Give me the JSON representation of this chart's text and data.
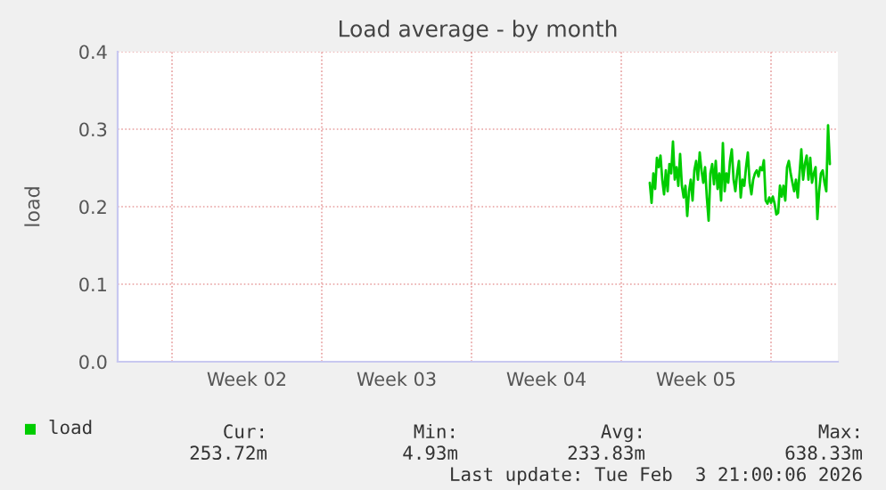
{
  "chart_data": {
    "type": "line",
    "title": "Load average - by month",
    "ylabel": "load",
    "categories": [
      null,
      null,
      null,
      null,
      null,
      null,
      null,
      null,
      null,
      null,
      null,
      null,
      null,
      null,
      null,
      null,
      null,
      null,
      null,
      null,
      null,
      null,
      null,
      null,
      null,
      null,
      null,
      null,
      null,
      null,
      null,
      null,
      null,
      null,
      null,
      null,
      null,
      null,
      null,
      null,
      null,
      null,
      null,
      null,
      null,
      null,
      null,
      null,
      null,
      null,
      null,
      null,
      null,
      null,
      null,
      null,
      null,
      null,
      null,
      null,
      null,
      null,
      null,
      null,
      null,
      null,
      null,
      null,
      null,
      null,
      null,
      null,
      "Week 02",
      null,
      null,
      null,
      null,
      null,
      null,
      null,
      null,
      null,
      null,
      null,
      null,
      null,
      null,
      null,
      null,
      null,
      null,
      null,
      null,
      null,
      null,
      null,
      null,
      null,
      null,
      null,
      null,
      null,
      null,
      null,
      null,
      null,
      null,
      null,
      null,
      null,
      null,
      null,
      null,
      null,
      null,
      null,
      null,
      null,
      null,
      null,
      null,
      null,
      null,
      null,
      null,
      null,
      null,
      null,
      null,
      null,
      null,
      null,
      null,
      null,
      null,
      null,
      null,
      null,
      null,
      null,
      null,
      null,
      null,
      null,
      null,
      null,
      null,
      null,
      null,
      null,
      null,
      null,
      null,
      null,
      null,
      null,
      "Week 03",
      null,
      null,
      null,
      null,
      null,
      null,
      null,
      null,
      null,
      null,
      null,
      null,
      null,
      null,
      null,
      null,
      null,
      null,
      null,
      null,
      null,
      null,
      null,
      null,
      null,
      null,
      null,
      null,
      null,
      null,
      null,
      null,
      null,
      null,
      null,
      null,
      null,
      null,
      null,
      null,
      null,
      null,
      null,
      null,
      null,
      null,
      null,
      null,
      null,
      null,
      null,
      null,
      null,
      null,
      null,
      null,
      null,
      null,
      null,
      null,
      null,
      null,
      null,
      null,
      null,
      null,
      null,
      null,
      null,
      null,
      null,
      null,
      null,
      null,
      null,
      null,
      null,
      null,
      null,
      null,
      null,
      null,
      null,
      "Week 04",
      null,
      null,
      null,
      null,
      null,
      null,
      null,
      null,
      null,
      null,
      null,
      null,
      null,
      null,
      null,
      null,
      null,
      null,
      null,
      null,
      null,
      null,
      null,
      null,
      null,
      null,
      null,
      null,
      null,
      null,
      null,
      null,
      null,
      null,
      null,
      null,
      null,
      null,
      null,
      null,
      null,
      null,
      null,
      null,
      null,
      null,
      null,
      null,
      null,
      null,
      null,
      null,
      null,
      null,
      null,
      null,
      null,
      null,
      null,
      null,
      null,
      null,
      null,
      null,
      null,
      null,
      null,
      null,
      null,
      null,
      null,
      null,
      null,
      null,
      null,
      null,
      null,
      null,
      null,
      null,
      null,
      null,
      null,
      "Week 05",
      null,
      null,
      null,
      null,
      null,
      null,
      null,
      null,
      null,
      null,
      null,
      null,
      null,
      null,
      null,
      null,
      null,
      null,
      null,
      null,
      null,
      null,
      null,
      null,
      null,
      null,
      null,
      null,
      null,
      null,
      null,
      null,
      null,
      null,
      null,
      null,
      null,
      null,
      null,
      null,
      null,
      null,
      null,
      null,
      null,
      null,
      null,
      null,
      null,
      null,
      null,
      null,
      null,
      null,
      null,
      null,
      null,
      null,
      null,
      null,
      null,
      null,
      null,
      null,
      null,
      null,
      null,
      null,
      null,
      null,
      null,
      null,
      null,
      null,
      null,
      null,
      null,
      null,
      null
    ],
    "series": [
      {
        "name": "load",
        "color": "#00cc00",
        "values": [
          null,
          null,
          null,
          null,
          null,
          null,
          null,
          null,
          null,
          null,
          null,
          null,
          null,
          null,
          null,
          null,
          null,
          null,
          null,
          null,
          null,
          null,
          null,
          null,
          null,
          null,
          null,
          null,
          null,
          null,
          null,
          null,
          null,
          null,
          null,
          null,
          null,
          null,
          null,
          null,
          null,
          null,
          null,
          null,
          null,
          null,
          null,
          null,
          null,
          null,
          null,
          null,
          null,
          null,
          null,
          null,
          null,
          null,
          null,
          null,
          null,
          null,
          null,
          null,
          null,
          null,
          null,
          null,
          null,
          null,
          null,
          null,
          null,
          null,
          null,
          null,
          null,
          null,
          null,
          null,
          null,
          null,
          null,
          null,
          null,
          null,
          null,
          null,
          null,
          null,
          null,
          null,
          null,
          null,
          null,
          null,
          null,
          null,
          null,
          null,
          null,
          null,
          null,
          null,
          null,
          null,
          null,
          null,
          null,
          null,
          null,
          null,
          null,
          null,
          null,
          null,
          null,
          null,
          null,
          null,
          null,
          null,
          null,
          null,
          null,
          null,
          null,
          null,
          null,
          null,
          null,
          null,
          null,
          null,
          null,
          null,
          null,
          null,
          null,
          null,
          null,
          null,
          null,
          null,
          null,
          null,
          null,
          null,
          null,
          null,
          null,
          null,
          null,
          null,
          null,
          null,
          null,
          null,
          null,
          null,
          null,
          null,
          null,
          null,
          null,
          null,
          null,
          null,
          null,
          null,
          null,
          null,
          null,
          null,
          null,
          null,
          null,
          null,
          null,
          null,
          null,
          null,
          null,
          null,
          null,
          null,
          null,
          null,
          null,
          null,
          null,
          null,
          null,
          null,
          null,
          null,
          null,
          null,
          null,
          null,
          null,
          null,
          null,
          null,
          null,
          null,
          null,
          null,
          null,
          null,
          null,
          null,
          null,
          null,
          null,
          null,
          null,
          null,
          null,
          null,
          null,
          null,
          null,
          null,
          null,
          null,
          null,
          null,
          null,
          null,
          null,
          null,
          null,
          null,
          null,
          null,
          null,
          null,
          null,
          null,
          null,
          null,
          null,
          null,
          null,
          null,
          null,
          null,
          null,
          null,
          null,
          null,
          null,
          null,
          null,
          null,
          null,
          null,
          null,
          null,
          null,
          null,
          null,
          null,
          null,
          null,
          null,
          null,
          null,
          null,
          null,
          null,
          null,
          null,
          null,
          null,
          null,
          null,
          null,
          null,
          null,
          null,
          null,
          null,
          null,
          null,
          null,
          null,
          null,
          null,
          null,
          null,
          null,
          null,
          null,
          null,
          null,
          null,
          0.231,
          0.205,
          0.243,
          0.223,
          0.263,
          0.251,
          0.266,
          0.235,
          0.216,
          0.247,
          0.22,
          0.255,
          0.243,
          0.284,
          0.235,
          0.251,
          0.227,
          0.268,
          0.227,
          0.212,
          0.227,
          0.188,
          0.22,
          0.235,
          0.208,
          0.247,
          0.259,
          0.235,
          0.27,
          0.247,
          0.231,
          0.251,
          0.212,
          0.182,
          0.243,
          0.255,
          0.229,
          0.259,
          0.223,
          0.243,
          0.208,
          0.282,
          0.22,
          0.243,
          0.231,
          0.259,
          0.274,
          0.235,
          0.22,
          0.243,
          0.259,
          0.212,
          0.235,
          0.227,
          0.251,
          0.27,
          0.231,
          0.216,
          0.235,
          0.243,
          0.247,
          0.239,
          0.251,
          0.247,
          0.26,
          0.208,
          0.204,
          0.212,
          0.205,
          0.213,
          0.204,
          0.19,
          0.192,
          0.227,
          0.213,
          0.227,
          0.208,
          0.251,
          0.259,
          0.243,
          0.231,
          0.22,
          0.235,
          0.212,
          0.243,
          0.274,
          0.235,
          0.255,
          0.266,
          0.235,
          0.263,
          0.231,
          0.243,
          0.251,
          0.184,
          0.22,
          0.243,
          0.247,
          0.231,
          0.22,
          0.305,
          0.255,
          null,
          null,
          null,
          null
        ]
      }
    ],
    "ylim": [
      0,
      0.4
    ],
    "yticks": [
      {
        "value": 0,
        "label": "0.0"
      },
      {
        "value": 0.1,
        "label": "0.1"
      },
      {
        "value": 0.2,
        "label": "0.2"
      },
      {
        "value": 0.3,
        "label": "0.3"
      },
      {
        "value": 0.4,
        "label": "0.4"
      }
    ],
    "grid": true,
    "legend": "bottom left",
    "marker": "none",
    "line_style": "solid",
    "annotations": [
      "Cur:",
      "253.72m",
      "Min:",
      "4.93m",
      "Avg:",
      "233.83m",
      "Max:",
      "638.33m",
      "Last update: Tue Feb  3 21:00:06 2026"
    ]
  }
}
